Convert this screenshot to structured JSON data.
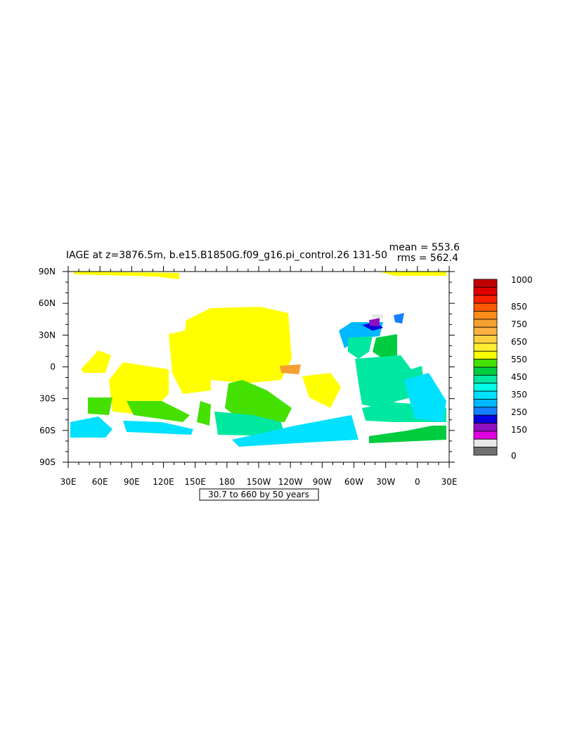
{
  "header": {
    "title": "IAGE at z=3876.5m, b.e15.B1850G.f09_g16.pi_control.26 131-50",
    "mean": "mean = 553.6",
    "rms": "rms = 562.4"
  },
  "map": {
    "x_labels": [
      "30E",
      "60E",
      "90E",
      "120E",
      "150E",
      "180",
      "150W",
      "120W",
      "90W",
      "60W",
      "30W",
      "0",
      "30E"
    ],
    "y_labels": [
      "90N",
      "60N",
      "30N",
      "0",
      "30S",
      "60S",
      "90S"
    ],
    "footer": "30.7 to 660 by 50 years"
  },
  "colorbar": {
    "labels": [
      "1000",
      "850",
      "750",
      "650",
      "550",
      "450",
      "350",
      "250",
      "150",
      "0"
    ],
    "colors": [
      "#c00000",
      "#e00000",
      "#ff2000",
      "#ff5a00",
      "#ff8c1a",
      "#f5a030",
      "#ffb040",
      "#ffd040",
      "#ffee30",
      "#ffff00",
      "#44e000",
      "#00cc40",
      "#00e8a0",
      "#00ffe8",
      "#00e0ff",
      "#00b8ff",
      "#1480ff",
      "#0000e0",
      "#9010c0",
      "#e000e0",
      "#e8e8e8",
      "#707070"
    ]
  }
}
